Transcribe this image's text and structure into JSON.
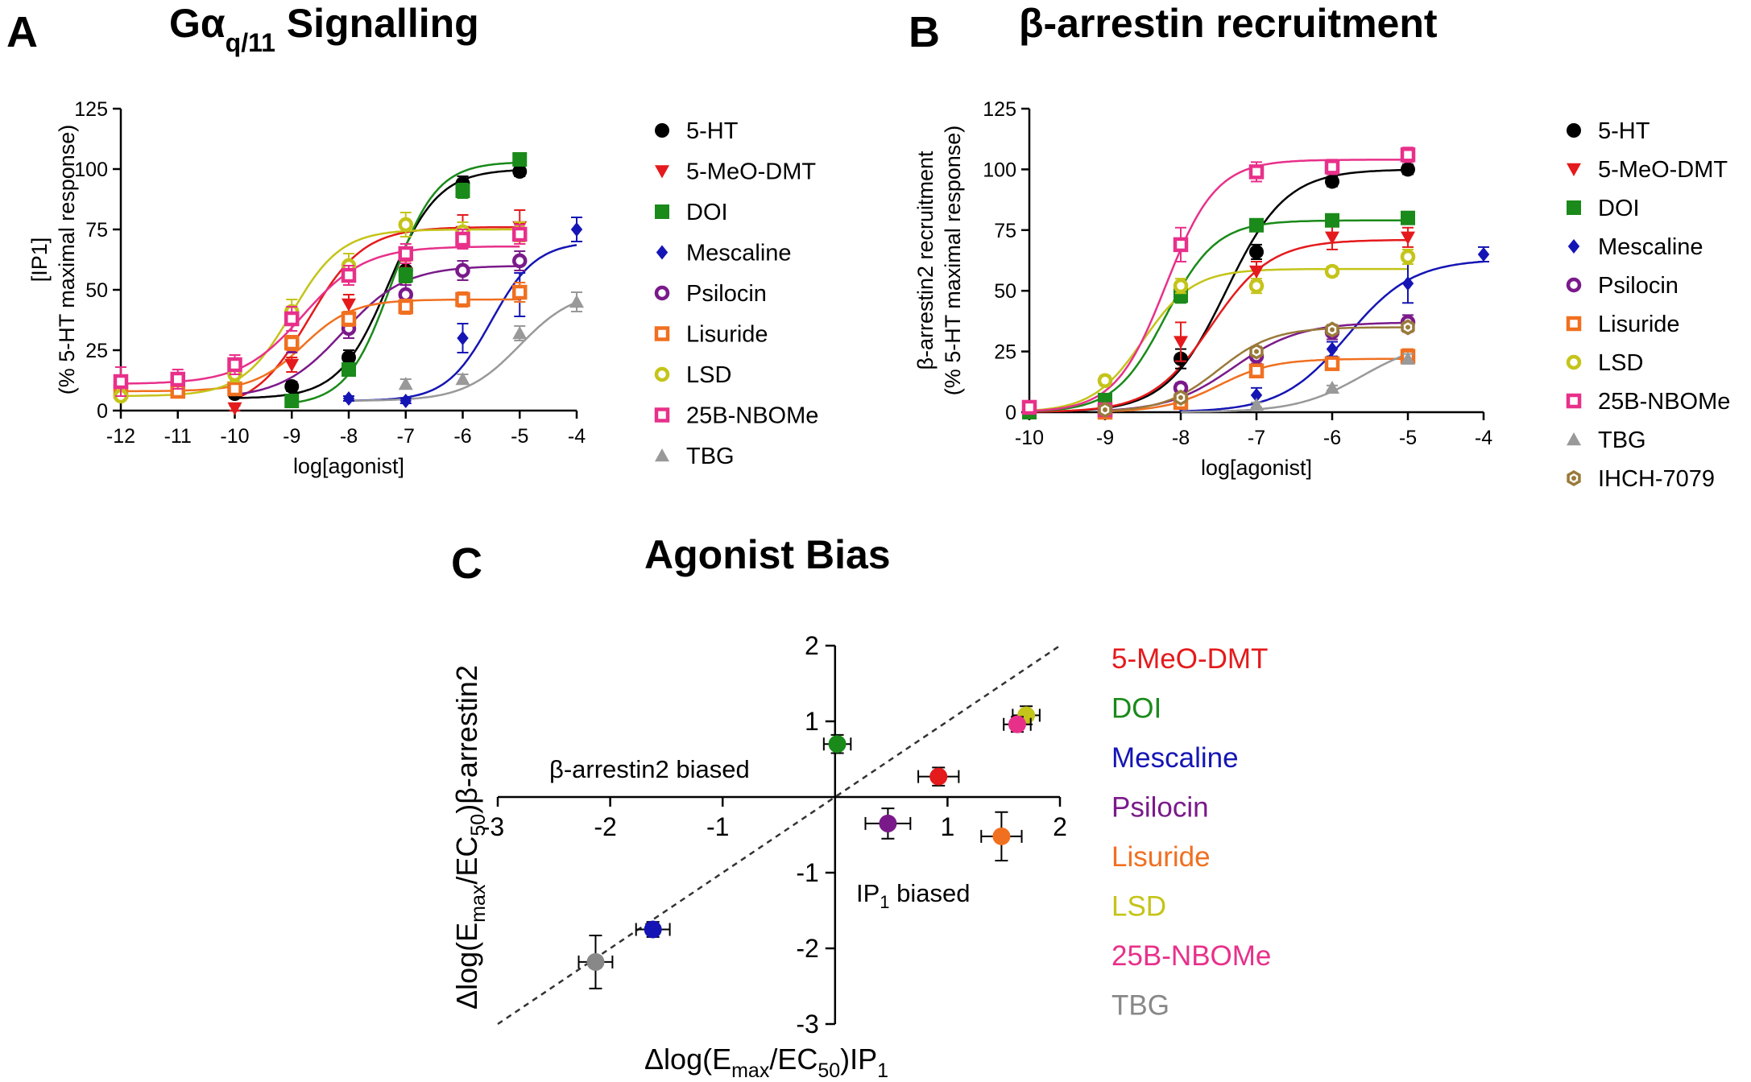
{
  "figure": {
    "panel_a": {
      "letter": "A",
      "title_pre": "Gα",
      "title_sub": "q/11",
      "title_post": " Signalling"
    },
    "panel_b": {
      "letter": "B",
      "title": "β-arrestin recruitment"
    },
    "panel_c": {
      "letter": "C",
      "title": "Agonist Bias"
    }
  },
  "chart_data": [
    {
      "id": "A",
      "type": "scatter",
      "title": "Gαq/11 Signalling",
      "xlabel": "log[agonist]",
      "ylabel_line1": "[IP1]",
      "ylabel_line2": "(% 5-HT maximal response)",
      "xlim": [
        -12,
        -4
      ],
      "ylim": [
        0,
        125
      ],
      "xticks": [
        -12,
        -11,
        -10,
        -9,
        -8,
        -7,
        -6,
        -5,
        -4
      ],
      "yticks": [
        0,
        25,
        50,
        75,
        100,
        125
      ],
      "series": [
        {
          "name": "5-HT",
          "color": "#000000",
          "marker": "circle",
          "x": [
            -10,
            -9,
            -8,
            -7,
            -6,
            -5
          ],
          "y": [
            7,
            10,
            22,
            58,
            94,
            99
          ],
          "err": [
            1,
            2,
            3,
            5,
            3,
            2
          ],
          "fit": {
            "bottom": 5,
            "top": 100,
            "ec50": -7.3,
            "hill": 1.0,
            "from": -10,
            "to": -5
          }
        },
        {
          "name": "5-MeO-DMT",
          "color": "#e41a1c",
          "marker": "triangle-down",
          "x": [
            -10,
            -9,
            -8,
            -7,
            -6,
            -5
          ],
          "y": [
            1,
            19,
            44,
            57,
            74,
            76
          ],
          "err": [
            1,
            3,
            4,
            5,
            7,
            7
          ],
          "fit": {
            "bottom": 0,
            "top": 76,
            "ec50": -8.7,
            "hill": 0.9,
            "from": -10,
            "to": -5
          }
        },
        {
          "name": "DOI",
          "color": "#1a8a1a",
          "marker": "square",
          "x": [
            -9,
            -8,
            -7,
            -6,
            -5
          ],
          "y": [
            4,
            17,
            56,
            91,
            104
          ],
          "err": [
            1,
            2,
            3,
            3,
            2
          ],
          "fit": {
            "bottom": 2,
            "top": 103,
            "ec50": -7.25,
            "hill": 1.1,
            "from": -9,
            "to": -5
          }
        },
        {
          "name": "Mescaline",
          "color": "#1515b5",
          "marker": "diamond",
          "x": [
            -8,
            -7,
            -6,
            -5,
            -4
          ],
          "y": [
            5,
            4,
            30,
            48,
            75
          ],
          "err": [
            1,
            1,
            6,
            9,
            5
          ],
          "fit": {
            "bottom": 4,
            "top": 70,
            "ec50": -5.5,
            "hill": 1.1,
            "from": -8,
            "to": -4
          }
        },
        {
          "name": "Psilocin",
          "color": "#7a1a8a",
          "marker": "circle-open",
          "x": [
            -10,
            -9,
            -8,
            -7,
            -6,
            -5
          ],
          "y": [
            10,
            27,
            34,
            48,
            58,
            62
          ],
          "err": [
            2,
            3,
            4,
            4,
            4,
            4
          ],
          "fit": {
            "bottom": 5,
            "top": 60,
            "ec50": -8.1,
            "hill": 0.8,
            "from": -10,
            "to": -5
          }
        },
        {
          "name": "Lisuride",
          "color": "#f07020",
          "marker": "square-open",
          "x": [
            -12,
            -11,
            -10,
            -9,
            -8,
            -7,
            -6,
            -5
          ],
          "y": [
            8,
            8,
            9,
            28,
            38,
            43,
            46,
            49
          ],
          "err": [
            2,
            2,
            2,
            3,
            3,
            3,
            3,
            4
          ],
          "fit": {
            "bottom": 8,
            "top": 46,
            "ec50": -8.8,
            "hill": 1.0,
            "from": -12,
            "to": -5
          }
        },
        {
          "name": "LSD",
          "color": "#c4c41a",
          "marker": "circle-open",
          "x": [
            -12,
            -10,
            -9,
            -8,
            -7,
            -6,
            -5
          ],
          "y": [
            6,
            15,
            41,
            60,
            77,
            74,
            74
          ],
          "err": [
            1,
            3,
            5,
            5,
            5,
            4,
            4
          ],
          "fit": {
            "bottom": 6,
            "top": 75,
            "ec50": -9.0,
            "hill": 1.0,
            "from": -12,
            "to": -5
          }
        },
        {
          "name": "25B-NBOMe",
          "color": "#e8308a",
          "marker": "square-open",
          "x": [
            -12,
            -11,
            -10,
            -9,
            -8,
            -7,
            -6,
            -5
          ],
          "y": [
            12,
            13,
            19,
            38,
            56,
            65,
            71,
            73
          ],
          "err": [
            6,
            4,
            4,
            5,
            4,
            4,
            4,
            4
          ],
          "fit": {
            "bottom": 11,
            "top": 68,
            "ec50": -8.8,
            "hill": 0.8,
            "from": -12,
            "to": -5
          }
        },
        {
          "name": "TBG",
          "color": "#999999",
          "marker": "triangle-up",
          "x": [
            -7,
            -6,
            -5,
            -4
          ],
          "y": [
            11,
            13,
            32,
            45
          ],
          "err": [
            2,
            2,
            3,
            4
          ],
          "fit": {
            "bottom": 4,
            "top": 50,
            "ec50": -5.0,
            "hill": 0.9,
            "from": -8,
            "to": -4
          }
        }
      ]
    },
    {
      "id": "B",
      "type": "scatter",
      "title": "β-arrestin recruitment",
      "xlabel": "log[agonist]",
      "ylabel_line1": "β-arrestin2 recruitment",
      "ylabel_line2": "(% 5-HT maximal response)",
      "xlim": [
        -10,
        -4
      ],
      "ylim": [
        0,
        125
      ],
      "xticks": [
        -10,
        -9,
        -8,
        -7,
        -6,
        -5,
        -4
      ],
      "yticks": [
        0,
        25,
        50,
        75,
        100,
        125
      ],
      "series": [
        {
          "name": "5-HT",
          "color": "#000000",
          "marker": "circle",
          "x": [
            -10,
            -9,
            -8,
            -7,
            -6,
            -5
          ],
          "y": [
            0,
            2,
            22,
            66,
            95,
            100
          ],
          "err": [
            1,
            1,
            4,
            3,
            2,
            2
          ],
          "fit": {
            "bottom": 0,
            "top": 100,
            "ec50": -7.4,
            "hill": 1.1,
            "from": -10,
            "to": -5
          }
        },
        {
          "name": "5-MeO-DMT",
          "color": "#e41a1c",
          "marker": "triangle-down",
          "x": [
            -10,
            -9,
            -8,
            -7,
            -6,
            -5
          ],
          "y": [
            0,
            2,
            29,
            58,
            72,
            72
          ],
          "err": [
            1,
            1,
            8,
            4,
            5,
            4
          ],
          "fit": {
            "bottom": 0,
            "top": 71,
            "ec50": -7.6,
            "hill": 1.1,
            "from": -10,
            "to": -5
          }
        },
        {
          "name": "DOI",
          "color": "#1a8a1a",
          "marker": "square",
          "x": [
            -10,
            -9,
            -8,
            -7,
            -6,
            -5
          ],
          "y": [
            0,
            5,
            48,
            77,
            79,
            80
          ],
          "err": [
            1,
            1,
            3,
            2,
            2,
            2
          ],
          "fit": {
            "bottom": 0,
            "top": 79,
            "ec50": -8.2,
            "hill": 1.3,
            "from": -10,
            "to": -5
          }
        },
        {
          "name": "Mescaline",
          "color": "#1515b5",
          "marker": "diamond",
          "x": [
            -8,
            -7,
            -6,
            -5,
            -4
          ],
          "y": [
            3,
            7,
            26,
            53,
            65
          ],
          "err": [
            1,
            3,
            3,
            8,
            3
          ],
          "fit": {
            "bottom": 0,
            "top": 63,
            "ec50": -5.8,
            "hill": 1.0,
            "from": -8,
            "to": -4
          }
        },
        {
          "name": "Psilocin",
          "color": "#7a1a8a",
          "marker": "circle-open",
          "x": [
            -9,
            -8,
            -7,
            -6,
            -5
          ],
          "y": [
            0,
            10,
            23,
            33,
            37
          ],
          "err": [
            1,
            2,
            3,
            3,
            3
          ],
          "fit": {
            "bottom": 0,
            "top": 37,
            "ec50": -7.3,
            "hill": 1.0,
            "from": -9,
            "to": -5
          }
        },
        {
          "name": "Lisuride",
          "color": "#f07020",
          "marker": "square-open",
          "x": [
            -9,
            -8,
            -7,
            -6,
            -5
          ],
          "y": [
            0,
            4,
            17,
            20,
            23
          ],
          "err": [
            1,
            1,
            2,
            2,
            3
          ],
          "fit": {
            "bottom": 0,
            "top": 22,
            "ec50": -7.5,
            "hill": 1.2,
            "from": -9,
            "to": -5
          }
        },
        {
          "name": "LSD",
          "color": "#c4c41a",
          "marker": "circle-open",
          "x": [
            -9,
            -8,
            -7,
            -6,
            -5
          ],
          "y": [
            13,
            52,
            52,
            58,
            64
          ],
          "err": [
            2,
            3,
            3,
            2,
            3
          ],
          "fit": {
            "bottom": 0,
            "top": 59,
            "ec50": -8.5,
            "hill": 1.3,
            "from": -10,
            "to": -5
          }
        },
        {
          "name": "25B-NBOMe",
          "color": "#e8308a",
          "marker": "square-open",
          "x": [
            -10,
            -9,
            -8,
            -7,
            -6,
            -5
          ],
          "y": [
            2,
            1,
            69,
            99,
            101,
            106
          ],
          "err": [
            1,
            1,
            7,
            4,
            3,
            3
          ],
          "fit": {
            "bottom": 0,
            "top": 104,
            "ec50": -8.2,
            "hill": 1.3,
            "from": -10,
            "to": -5
          }
        },
        {
          "name": "TBG",
          "color": "#999999",
          "marker": "triangle-up",
          "x": [
            -7,
            -6,
            -5
          ],
          "y": [
            3,
            10,
            22
          ],
          "err": [
            1,
            1,
            2
          ],
          "fit": {
            "bottom": 0,
            "top": 30,
            "ec50": -5.6,
            "hill": 1.0,
            "from": -8,
            "to": -5
          }
        },
        {
          "name": "IHCH-7079",
          "color": "#9a7a3a",
          "marker": "hex-open",
          "x": [
            -9,
            -8,
            -7,
            -6,
            -5
          ],
          "y": [
            1,
            6,
            25,
            34,
            35
          ],
          "err": [
            1,
            1,
            2,
            2,
            2
          ],
          "fit": {
            "bottom": 0,
            "top": 35,
            "ec50": -7.5,
            "hill": 1.2,
            "from": -9,
            "to": -5
          }
        }
      ]
    },
    {
      "id": "C",
      "type": "scatter",
      "title": "Agonist Bias",
      "xlabel": "Δlog(Emax/EC50)IP1",
      "ylabel": "Δlog(Emax/EC50)β-arrestin2",
      "xlim": [
        -3,
        2
      ],
      "ylim": [
        -3,
        2
      ],
      "xticks": [
        -3,
        -2,
        -1,
        1,
        2
      ],
      "yticks": [
        2,
        1,
        -1,
        -2,
        -3
      ],
      "annotations": [
        "β-arrestin2 biased",
        "IP1 biased"
      ],
      "points": [
        {
          "name": "5-MeO-DMT",
          "color": "#e41a1c",
          "x": 0.92,
          "y": 0.27,
          "xerr": 0.18,
          "yerr": 0.12
        },
        {
          "name": "DOI",
          "color": "#1a8a1a",
          "x": 0.02,
          "y": 0.7,
          "xerr": 0.12,
          "yerr": 0.12
        },
        {
          "name": "Mescaline",
          "color": "#1515b5",
          "x": -1.62,
          "y": -1.75,
          "xerr": 0.15,
          "yerr": 0.1
        },
        {
          "name": "Psilocin",
          "color": "#7a1a8a",
          "x": 0.47,
          "y": -0.35,
          "xerr": 0.2,
          "yerr": 0.2
        },
        {
          "name": "Lisuride",
          "color": "#f07020",
          "x": 1.48,
          "y": -0.52,
          "xerr": 0.18,
          "yerr": 0.32
        },
        {
          "name": "LSD",
          "color": "#c4c41a",
          "x": 1.7,
          "y": 1.08,
          "xerr": 0.12,
          "yerr": 0.12
        },
        {
          "name": "25B-NBOMe",
          "color": "#e8308a",
          "x": 1.62,
          "y": 0.96,
          "xerr": 0.12,
          "yerr": 0.1
        },
        {
          "name": "TBG",
          "color": "#888888",
          "x": -2.13,
          "y": -2.18,
          "xerr": 0.15,
          "yerr": 0.35
        }
      ]
    }
  ]
}
